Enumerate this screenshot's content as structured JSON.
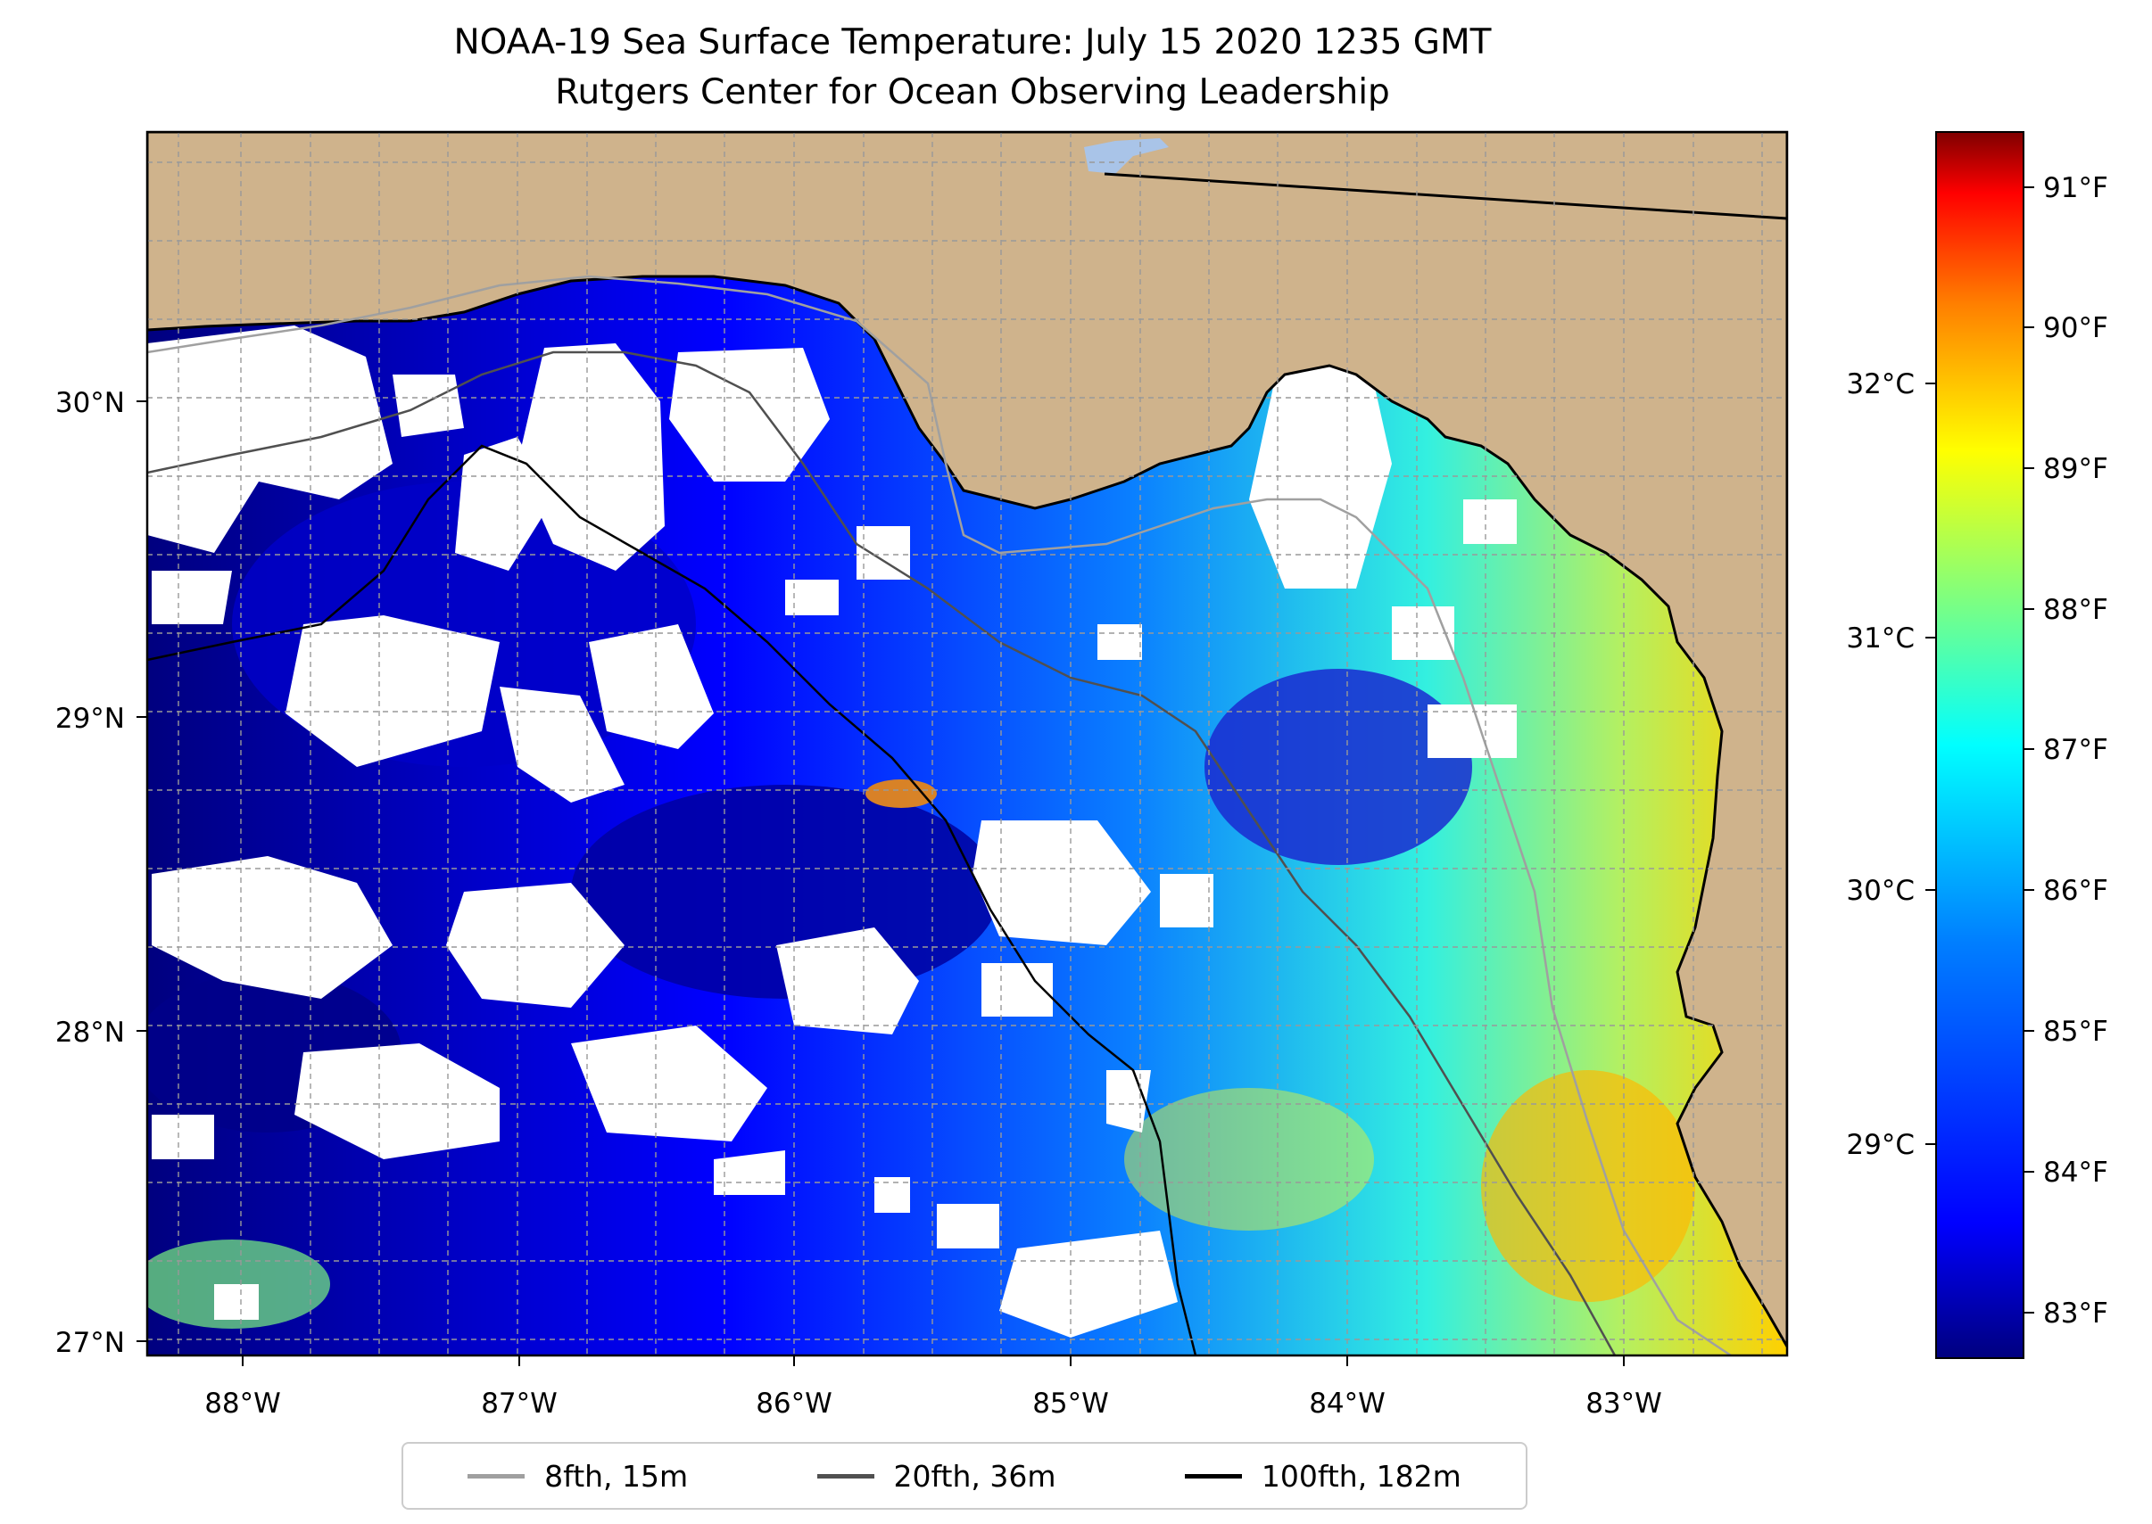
{
  "title": {
    "line1": "NOAA-19 Sea Surface Temperature: July 15 2020 1235 GMT",
    "line2": "Rutgers Center for Ocean Observing Leadership"
  },
  "map_data": {
    "lon_ticks": [
      "88°W",
      "87°W",
      "86°W",
      "85°W",
      "84°W",
      "83°W"
    ],
    "lat_ticks": [
      "30°N",
      "29°N",
      "28°N",
      "27°N"
    ],
    "land_color": "#cfb38c",
    "lake_color": "#a9c4e8",
    "grid": "dashed"
  },
  "colorbar": {
    "fahrenheit_ticks": [
      "91°F",
      "90°F",
      "89°F",
      "88°F",
      "87°F",
      "86°F",
      "85°F",
      "84°F",
      "83°F"
    ],
    "celsius_ticks": [
      "32°C",
      "31°C",
      "30°C",
      "29°C"
    ],
    "colormap": "jet",
    "colors": [
      "#00007f",
      "#0000ff",
      "#007fff",
      "#00ffff",
      "#7fff7f",
      "#ffff00",
      "#ff7f00",
      "#ff0000",
      "#7f0000"
    ]
  },
  "legend": {
    "items": [
      {
        "label": "8fth, 15m",
        "color": "#a0a0a0"
      },
      {
        "label": "20fth, 36m",
        "color": "#505050"
      },
      {
        "label": "100fth, 182m",
        "color": "#000000"
      }
    ]
  }
}
